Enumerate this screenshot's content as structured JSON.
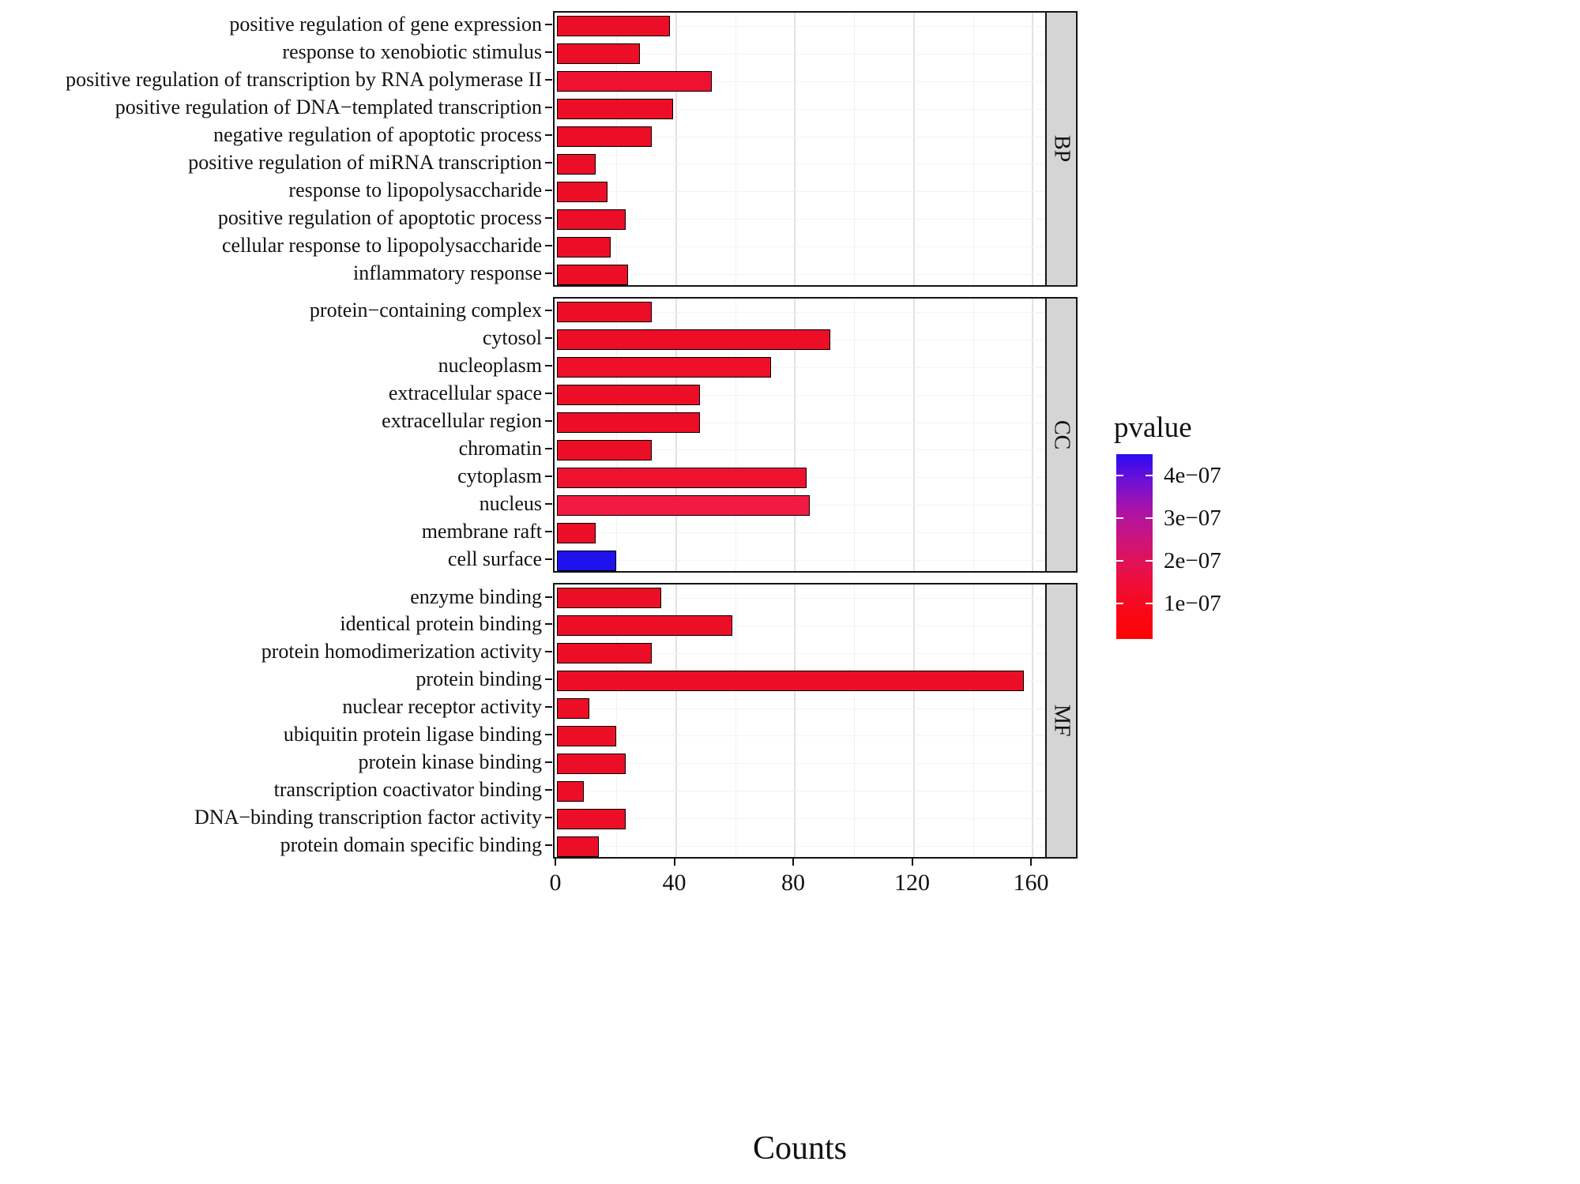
{
  "figure": {
    "xlabel": "Counts"
  },
  "legend": {
    "title": "pvalue",
    "ticks": [
      {
        "label": "4e−07"
      },
      {
        "label": "3e−07"
      },
      {
        "label": "2e−07"
      },
      {
        "label": "1e−07"
      }
    ],
    "gradient_stops": [
      "#2a0bf2",
      "#6e10d6",
      "#a513ac",
      "#c61484",
      "#df125c",
      "#f00d35",
      "#f90716",
      "#fd0403"
    ]
  },
  "chart_data": {
    "type": "bar",
    "orientation": "horizontal",
    "title": "",
    "xlabel": "Counts",
    "ylabel": "",
    "x_ticks": [
      0,
      40,
      80,
      120,
      160
    ],
    "x_minor": [
      20,
      60,
      100,
      140
    ],
    "xlim": [
      0,
      165
    ],
    "grid": true,
    "legend_position": "right",
    "color_scale": {
      "name": "pvalue",
      "low_color": "#fd0403",
      "high_color": "#2a0bf2",
      "tick_labels": [
        "4e−07",
        "3e−07",
        "2e−07",
        "1e−07"
      ]
    },
    "panels": [
      {
        "label": "BP",
        "categories": [
          "positive regulation of gene expression",
          "response to xenobiotic stimulus",
          "positive regulation of transcription by RNA polymerase II",
          "positive regulation of DNA−templated transcription",
          "negative regulation of apoptotic process",
          "positive regulation of miRNA transcription",
          "response to lipopolysaccharide",
          "positive regulation of apoptotic process",
          "cellular response to lipopolysaccharide",
          "inflammatory response"
        ],
        "values": [
          38,
          28,
          52,
          39,
          32,
          13,
          17,
          23,
          18,
          24
        ],
        "colors": [
          "#ec0e26",
          "#ec0e26",
          "#ee1230",
          "#ec0e26",
          "#ec0e26",
          "#ec0e26",
          "#ec0e26",
          "#ec0e26",
          "#ec0e26",
          "#ec0e26"
        ]
      },
      {
        "label": "CC",
        "categories": [
          "protein−containing complex",
          "cytosol",
          "nucleoplasm",
          "extracellular space",
          "extracellular region",
          "chromatin",
          "cytoplasm",
          "nucleus",
          "membrane raft",
          "cell surface"
        ],
        "values": [
          32,
          92,
          72,
          48,
          48,
          32,
          84,
          85,
          13,
          20
        ],
        "colors": [
          "#ec0e26",
          "#ec0e26",
          "#ed1028",
          "#ec0e26",
          "#ec0e26",
          "#ec0e26",
          "#ee1230",
          "#f21a42",
          "#ec0e26",
          "#2012ef"
        ]
      },
      {
        "label": "MF",
        "categories": [
          "enzyme binding",
          "identical protein binding",
          "protein homodimerization activity",
          "protein binding",
          "nuclear receptor activity",
          "ubiquitin protein ligase binding",
          "protein kinase binding",
          "transcription coactivator binding",
          "DNA−binding transcription factor activity",
          "protein domain specific binding"
        ],
        "values": [
          35,
          59,
          32,
          157,
          11,
          20,
          23,
          9,
          23,
          14
        ],
        "colors": [
          "#ec0e26",
          "#ec0e26",
          "#ec0e26",
          "#ec0e26",
          "#ec0e26",
          "#ec0e26",
          "#ec0e26",
          "#ec0e26",
          "#ec0e26",
          "#ec0e26"
        ]
      }
    ]
  }
}
